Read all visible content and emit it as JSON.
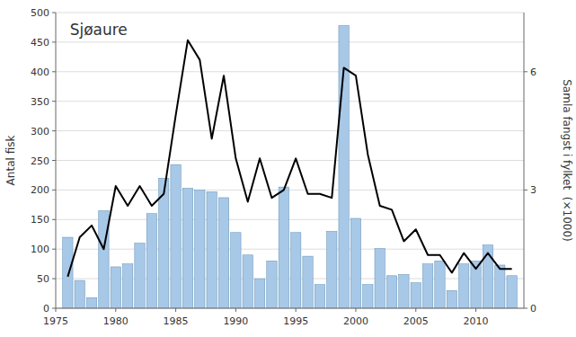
{
  "chart_data": {
    "type": "bar",
    "title": "Sjøaure",
    "y_label": "Antal fisk",
    "y2_label": "Samla fangst i fylket  (×1000)",
    "x": [
      1976,
      1977,
      1978,
      1979,
      1980,
      1981,
      1982,
      1983,
      1984,
      1985,
      1986,
      1987,
      1988,
      1989,
      1990,
      1991,
      1992,
      1993,
      1994,
      1995,
      1996,
      1997,
      1998,
      1999,
      2000,
      2001,
      2002,
      2003,
      2004,
      2005,
      2006,
      2007,
      2008,
      2009,
      2010,
      2011,
      2012,
      2013
    ],
    "xlim": [
      1975.0,
      2014.0
    ],
    "xticks": [
      1975,
      1980,
      1985,
      1990,
      1995,
      2000,
      2005,
      2010
    ],
    "ylim": [
      0,
      500
    ],
    "yticks": [
      0,
      50,
      100,
      150,
      200,
      250,
      300,
      350,
      400,
      450,
      500
    ],
    "y2lim": [
      0,
      7.5
    ],
    "y2ticks": [
      0,
      3,
      6
    ],
    "grid": true,
    "series": [
      {
        "type": "bar",
        "color": "#a8c8e8",
        "values": [
          120,
          47,
          18,
          165,
          70,
          75,
          110,
          160,
          220,
          243,
          203,
          200,
          197,
          187,
          128,
          90,
          50,
          80,
          205,
          128,
          88,
          40,
          130,
          478,
          152,
          40,
          101,
          55,
          57,
          43,
          75,
          80,
          30,
          75,
          80,
          107,
          73,
          55
        ]
      },
      {
        "type": "line",
        "color": "#000000",
        "axis": "y2",
        "values": [
          0.8,
          1.8,
          2.1,
          1.5,
          3.1,
          2.6,
          3.1,
          2.6,
          2.9,
          4.9,
          6.8,
          6.3,
          4.3,
          5.9,
          3.8,
          2.7,
          3.8,
          2.8,
          3.0,
          3.8,
          2.9,
          2.9,
          2.8,
          6.1,
          5.9,
          3.9,
          2.6,
          2.5,
          1.7,
          2.0,
          1.35,
          1.35,
          0.9,
          1.4,
          1.0,
          1.4,
          1.0,
          1.0
        ]
      }
    ]
  }
}
